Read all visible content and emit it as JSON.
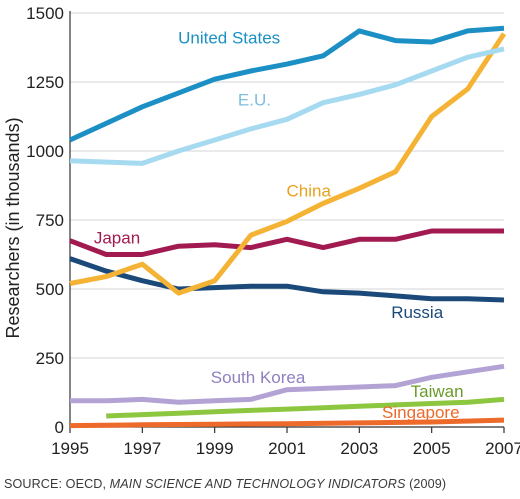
{
  "chart_data": {
    "type": "line",
    "title": "",
    "ylabel": "Researchers (in thousands)",
    "xlabel": "",
    "xlim": [
      1995,
      2007
    ],
    "ylim": [
      0,
      1500
    ],
    "x_ticks": [
      1995,
      1997,
      1999,
      2001,
      2003,
      2005,
      2007
    ],
    "y_ticks": [
      0,
      250,
      500,
      750,
      1000,
      1250,
      1500
    ],
    "grid": "horizontal",
    "series": [
      {
        "name": "United States",
        "color": "#1c8fc4",
        "points": [
          [
            1995,
            1040
          ],
          [
            1997,
            1160
          ],
          [
            1999,
            1260
          ],
          [
            2000,
            1290
          ],
          [
            2001,
            1315
          ],
          [
            2002,
            1345
          ],
          [
            2003,
            1435
          ],
          [
            2004,
            1400
          ],
          [
            2005,
            1395
          ],
          [
            2006,
            1435
          ],
          [
            2007,
            1445
          ]
        ]
      },
      {
        "name": "E.U.",
        "color": "#a6daf0",
        "points": [
          [
            1995,
            965
          ],
          [
            1997,
            955
          ],
          [
            1998,
            1000
          ],
          [
            1999,
            1040
          ],
          [
            2000,
            1080
          ],
          [
            2001,
            1115
          ],
          [
            2002,
            1175
          ],
          [
            2003,
            1205
          ],
          [
            2004,
            1240
          ],
          [
            2005,
            1290
          ],
          [
            2006,
            1340
          ],
          [
            2007,
            1370
          ]
        ]
      },
      {
        "name": "China",
        "color": "#f5b335",
        "points": [
          [
            1995,
            520
          ],
          [
            1996,
            545
          ],
          [
            1997,
            590
          ],
          [
            1998,
            485
          ],
          [
            1999,
            530
          ],
          [
            2000,
            695
          ],
          [
            2001,
            745
          ],
          [
            2002,
            810
          ],
          [
            2003,
            865
          ],
          [
            2004,
            925
          ],
          [
            2005,
            1125
          ],
          [
            2006,
            1225
          ],
          [
            2007,
            1425
          ]
        ]
      },
      {
        "name": "Japan",
        "color": "#a11a50",
        "points": [
          [
            1995,
            675
          ],
          [
            1996,
            625
          ],
          [
            1997,
            625
          ],
          [
            1998,
            655
          ],
          [
            1999,
            660
          ],
          [
            2000,
            650
          ],
          [
            2001,
            680
          ],
          [
            2002,
            650
          ],
          [
            2003,
            680
          ],
          [
            2004,
            680
          ],
          [
            2005,
            710
          ],
          [
            2006,
            710
          ],
          [
            2007,
            710
          ]
        ]
      },
      {
        "name": "Russia",
        "color": "#1b4a7a",
        "points": [
          [
            1995,
            610
          ],
          [
            1996,
            565
          ],
          [
            1997,
            530
          ],
          [
            1998,
            500
          ],
          [
            1999,
            505
          ],
          [
            2000,
            510
          ],
          [
            2001,
            510
          ],
          [
            2002,
            490
          ],
          [
            2003,
            485
          ],
          [
            2004,
            475
          ],
          [
            2005,
            465
          ],
          [
            2006,
            465
          ],
          [
            2007,
            460
          ]
        ]
      },
      {
        "name": "South Korea",
        "color": "#b3a3d4",
        "points": [
          [
            1995,
            95
          ],
          [
            1996,
            95
          ],
          [
            1997,
            100
          ],
          [
            1998,
            90
          ],
          [
            1999,
            95
          ],
          [
            2000,
            100
          ],
          [
            2001,
            135
          ],
          [
            2002,
            140
          ],
          [
            2003,
            145
          ],
          [
            2004,
            150
          ],
          [
            2005,
            180
          ],
          [
            2006,
            200
          ],
          [
            2007,
            220
          ]
        ]
      },
      {
        "name": "Taiwan",
        "color": "#8dc63f",
        "points": [
          [
            1996,
            40
          ],
          [
            1997,
            45
          ],
          [
            1998,
            50
          ],
          [
            1999,
            55
          ],
          [
            2000,
            60
          ],
          [
            2001,
            65
          ],
          [
            2002,
            70
          ],
          [
            2003,
            75
          ],
          [
            2004,
            80
          ],
          [
            2005,
            85
          ],
          [
            2006,
            90
          ],
          [
            2007,
            100
          ]
        ]
      },
      {
        "name": "Singapore",
        "color": "#ee6a2a",
        "points": [
          [
            1995,
            5
          ],
          [
            1997,
            8
          ],
          [
            1999,
            10
          ],
          [
            2001,
            12
          ],
          [
            2003,
            15
          ],
          [
            2005,
            18
          ],
          [
            2007,
            25
          ]
        ]
      }
    ],
    "source": {
      "prefix": "SOURCE: OECD, ",
      "title": "MAIN SCIENCE AND TECHNOLOGY INDICATORS",
      "suffix": " (2009)"
    }
  }
}
